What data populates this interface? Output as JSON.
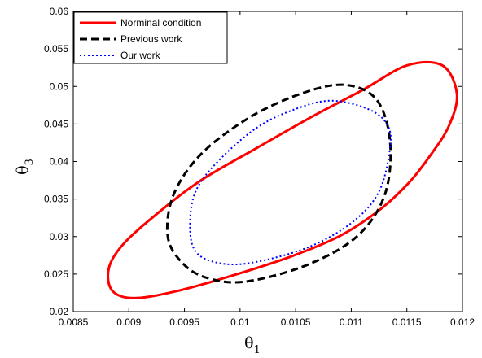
{
  "chart_data": {
    "type": "line",
    "title": "",
    "xlabel": {
      "symbol": "θ",
      "subscript": "1"
    },
    "ylabel": {
      "symbol": "θ",
      "subscript": "3"
    },
    "xlim": [
      0.0085,
      0.012
    ],
    "ylim": [
      0.02,
      0.06
    ],
    "xticks": [
      "0.0085",
      "0.009",
      "0.0095",
      "0.01",
      "0.0105",
      "0.011",
      "0.0115",
      "0.012"
    ],
    "yticks": [
      "0.02",
      "0.025",
      "0.03",
      "0.035",
      "0.04",
      "0.045",
      "0.05",
      "0.055",
      "0.06"
    ],
    "grid": false,
    "legend_position": "top-left",
    "series": [
      {
        "name": "Norminal condition",
        "color": "#ff0000",
        "style": "solid",
        "shape": "closed-contour",
        "x": [
          0.01195,
          0.01188,
          0.01172,
          0.01152,
          0.01125,
          0.0109,
          0.01045,
          0.00993,
          0.00945,
          0.00905,
          0.00885,
          0.00882,
          0.00895,
          0.00925,
          0.00965,
          0.01015,
          0.01065,
          0.0111,
          0.0115,
          0.01182,
          0.01195
        ],
        "y": [
          0.049,
          0.0448,
          0.041,
          0.0372,
          0.0335,
          0.0301,
          0.0273,
          0.0248,
          0.0228,
          0.0218,
          0.0228,
          0.0258,
          0.029,
          0.033,
          0.0375,
          0.0418,
          0.046,
          0.0495,
          0.0528,
          0.0528,
          0.049
        ]
      },
      {
        "name": "Previous work",
        "color": "#000000",
        "style": "dashed",
        "shape": "closed-contour",
        "x": [
          0.01135,
          0.0113,
          0.01105,
          0.0106,
          0.01005,
          0.0097,
          0.00948,
          0.00935,
          0.0094,
          0.00965,
          0.0101,
          0.01058,
          0.01095,
          0.01123,
          0.01135
        ],
        "y": [
          0.0425,
          0.0355,
          0.03,
          0.0262,
          0.024,
          0.0245,
          0.0265,
          0.03,
          0.0355,
          0.041,
          0.046,
          0.0492,
          0.0502,
          0.0482,
          0.0425
        ]
      },
      {
        "name": "Our work",
        "color": "#0000ff",
        "style": "dotted",
        "shape": "closed-contour",
        "x": [
          0.01135,
          0.01125,
          0.011,
          0.0106,
          0.0101,
          0.0098,
          0.0096,
          0.00955,
          0.0096,
          0.0098,
          0.01015,
          0.0105,
          0.01082,
          0.01115,
          0.01132,
          0.01135
        ],
        "y": [
          0.042,
          0.036,
          0.0318,
          0.0285,
          0.0265,
          0.0265,
          0.028,
          0.0315,
          0.036,
          0.04,
          0.0445,
          0.047,
          0.0481,
          0.047,
          0.045,
          0.042
        ]
      }
    ]
  }
}
